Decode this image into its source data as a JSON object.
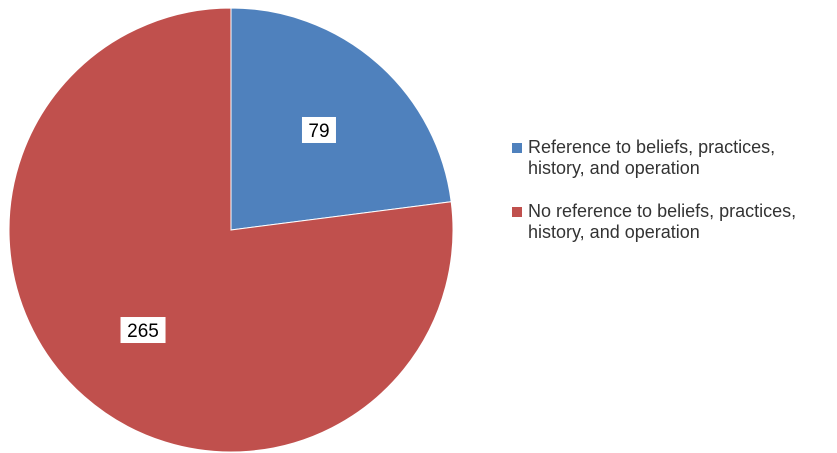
{
  "chart_data": {
    "type": "pie",
    "title": "",
    "legend_position": "right",
    "start_angle_deg": 0,
    "direction": "clockwise",
    "slices": [
      {
        "label": "Reference to beliefs, practices,\nhistory, and operation",
        "value": 79,
        "value_label": "79",
        "color": "#4f81bd"
      },
      {
        "label": "No reference to beliefs, practices,\nhistory, and operation",
        "value": 265,
        "value_label": "265",
        "color": "#c0504d"
      }
    ]
  }
}
